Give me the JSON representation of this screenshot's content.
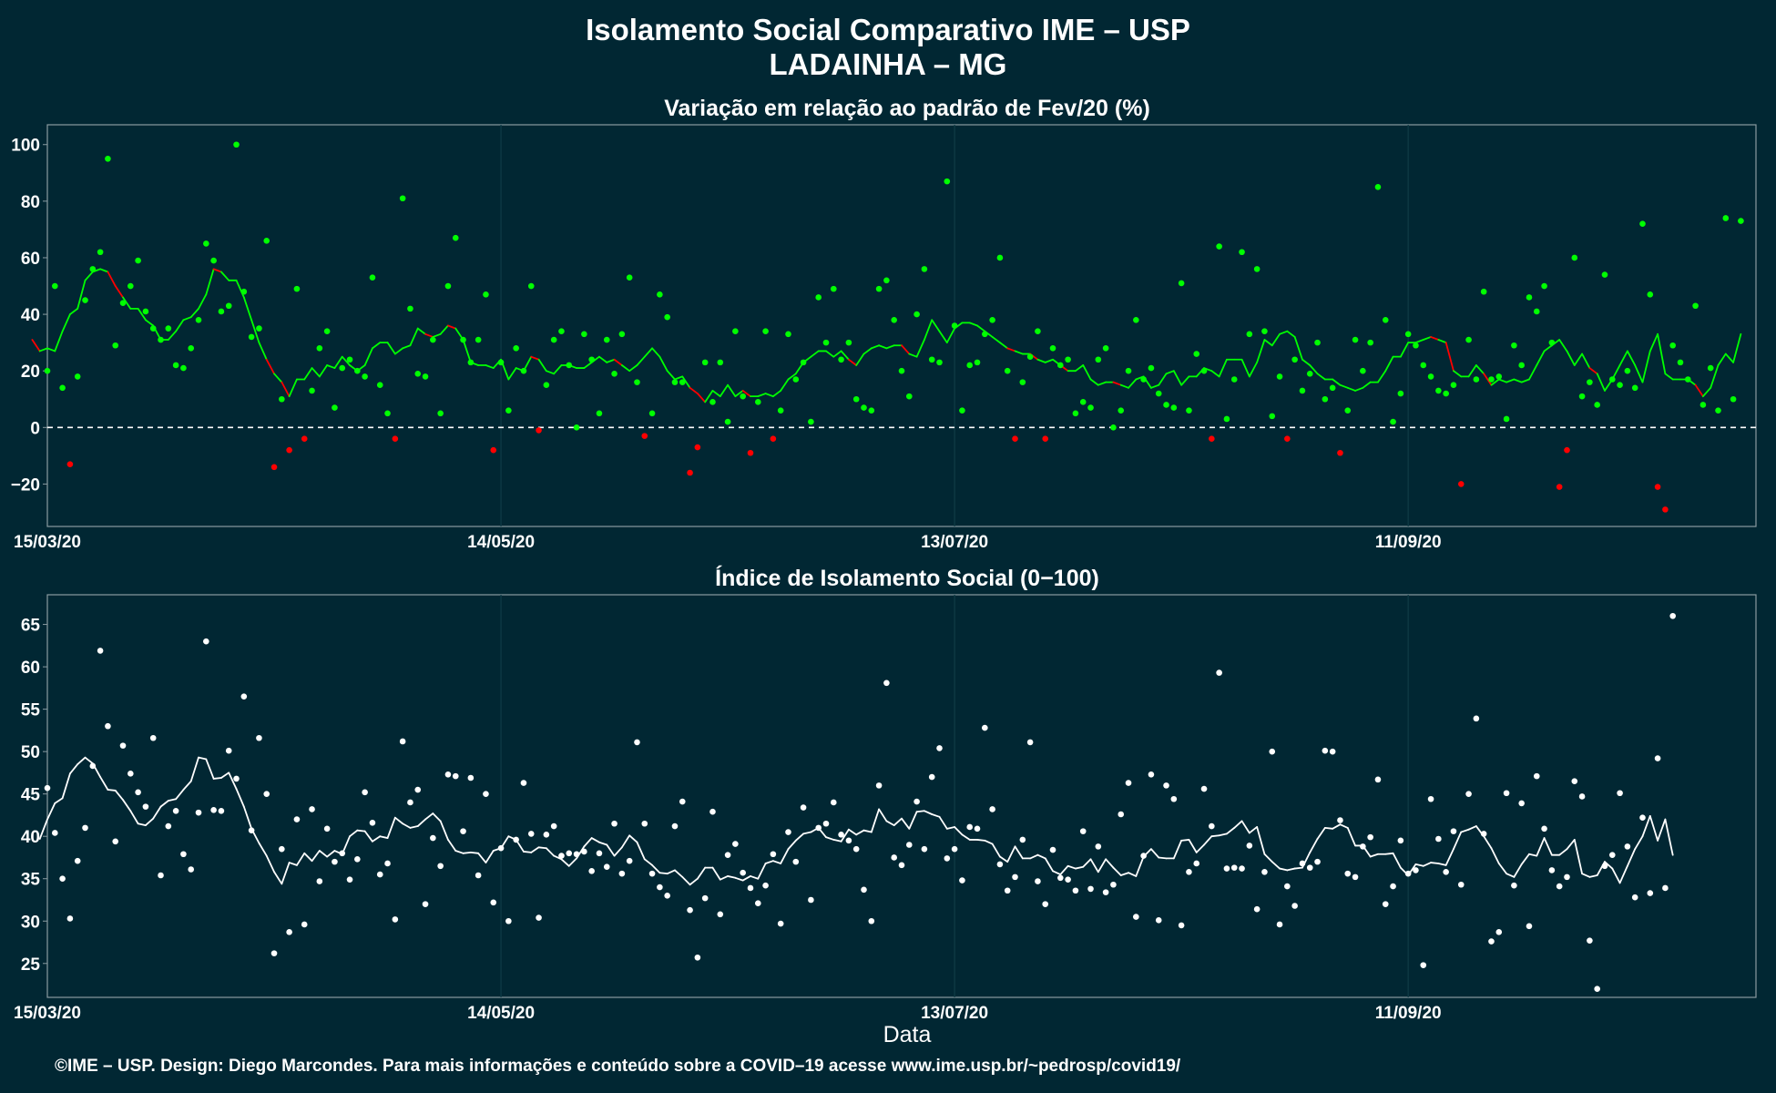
{
  "title_line1": "Isolamento Social Comparativo IME – USP",
  "title_line2": "LADAINHA – MG",
  "xlabel": "Data",
  "footer": "©IME – USP. Design: Diego Marcondes. Para mais informações e conteúdo sobre a COVID–19 acesse www.ime.usp.br/~pedrosp/covid19/",
  "colors": {
    "background": "#012733",
    "positive": "#00ff00",
    "negative": "#ff0000",
    "index": "#ffffff",
    "panel_border": "#8a9ba1",
    "grid": "#0f3a45"
  },
  "chart_data": [
    {
      "type": "scatter",
      "title": "Variação em relação ao padrão de Fev/20 (%)",
      "x_start": "2020-03-15",
      "x_end": "2020-10-27",
      "x_ticks": [
        "15/03/20",
        "14/05/20",
        "13/07/20",
        "11/09/20"
      ],
      "ylim": [
        -35,
        107
      ],
      "y_ticks": [
        "100",
        "80",
        "60",
        "40",
        "20",
        "0",
        "−20"
      ],
      "y_tick_values": [
        100,
        80,
        60,
        40,
        20,
        0,
        -20
      ],
      "reference_line": 0,
      "values": [
        20,
        50,
        14,
        -13,
        18,
        45,
        56,
        62,
        95,
        29,
        44,
        50,
        59,
        41,
        35,
        31,
        35,
        22,
        21,
        28,
        38,
        65,
        59,
        41,
        43,
        100,
        48,
        32,
        35,
        66,
        -14,
        10,
        -8,
        49,
        -4,
        13,
        28,
        34,
        7,
        21,
        24,
        20,
        18,
        53,
        15,
        5,
        -4,
        81,
        42,
        19,
        18,
        31,
        5,
        50,
        67,
        31,
        23,
        31,
        47,
        -8,
        23,
        6,
        28,
        20,
        50,
        -1,
        15,
        31,
        34,
        22,
        0,
        33,
        24,
        5,
        31,
        19,
        33,
        53,
        16,
        -3,
        5,
        47,
        39,
        16,
        16,
        -16,
        -7,
        23,
        9,
        23,
        2,
        34,
        11,
        -9,
        9,
        34,
        -4,
        6,
        33,
        17,
        23,
        2,
        46,
        30,
        49,
        24,
        30,
        10,
        7,
        6,
        49,
        52,
        38,
        20,
        11,
        40,
        56,
        24,
        23,
        87,
        36,
        6,
        22,
        23,
        33,
        38,
        60,
        20,
        -4,
        16,
        25,
        34,
        -4,
        28,
        22,
        24,
        5,
        9,
        7,
        24,
        28,
        0,
        6,
        20,
        38,
        17,
        21,
        12,
        8,
        7,
        51,
        6,
        26,
        20,
        -4,
        64,
        3,
        17,
        62,
        33,
        56,
        34,
        4,
        18,
        -4,
        24,
        13,
        19,
        30,
        10,
        14,
        -9,
        6,
        31,
        20,
        30,
        85,
        38,
        2,
        12,
        33,
        29,
        22,
        18,
        13,
        12,
        15,
        -20,
        31,
        17,
        48,
        17,
        18,
        3,
        29,
        22,
        46,
        41,
        50,
        30,
        -21,
        -8,
        60,
        11,
        16,
        8,
        54,
        17,
        15,
        20,
        14,
        72,
        47,
        -21,
        -29,
        29,
        23,
        17,
        43,
        8,
        21,
        6,
        74,
        10,
        73
      ],
      "moving_average": [
        31,
        27,
        28,
        27,
        34,
        40,
        42,
        52,
        55,
        56,
        55,
        50,
        46,
        42,
        42,
        38,
        36,
        31,
        31,
        34,
        38,
        39,
        42,
        47,
        56,
        55,
        52,
        52,
        46,
        38,
        30,
        24,
        19,
        16,
        11,
        17,
        17,
        21,
        18,
        22,
        21,
        25,
        22,
        20,
        22,
        28,
        30,
        30,
        26,
        28,
        29,
        35,
        33,
        32,
        33,
        36,
        35,
        31,
        23,
        22,
        22,
        21,
        24,
        17,
        21,
        20,
        25,
        24,
        20,
        19,
        22,
        22,
        21,
        21,
        23,
        25,
        23,
        24,
        22,
        20,
        22,
        25,
        28,
        25,
        20,
        17,
        18,
        14,
        12,
        9,
        13,
        11,
        15,
        11,
        13,
        11,
        11,
        12,
        11,
        13,
        17,
        19,
        23,
        25,
        27,
        27,
        25,
        27,
        24,
        22,
        26,
        28,
        29,
        28,
        29,
        29,
        26,
        25,
        31,
        38,
        34,
        30,
        35,
        37,
        37,
        36,
        34,
        32,
        30,
        28,
        27,
        26,
        26,
        24,
        23,
        24,
        22,
        20,
        20,
        22,
        17,
        15,
        16,
        16,
        15,
        14,
        17,
        18,
        14,
        15,
        19,
        20,
        15,
        18,
        18,
        21,
        20,
        18,
        24,
        24,
        24,
        18,
        23,
        31,
        29,
        33,
        34,
        32,
        24,
        22,
        19,
        17,
        17,
        15,
        14,
        13,
        14,
        16,
        16,
        20,
        25,
        25,
        30,
        30,
        31,
        32,
        31,
        30,
        20,
        18,
        18,
        22,
        19,
        15,
        17,
        16,
        17,
        16,
        17,
        22,
        27,
        29,
        31,
        27,
        22,
        26,
        21,
        19,
        13,
        17,
        22,
        27,
        22,
        16,
        27,
        33,
        19,
        17,
        17,
        17,
        15,
        11,
        14,
        22,
        26,
        23,
        33
      ]
    },
    {
      "type": "scatter",
      "title": "Índice de Isolamento Social (0−100)",
      "x_start": "2020-03-15",
      "x_end": "2020-10-27",
      "x_ticks": [
        "15/03/20",
        "14/05/20",
        "13/07/20",
        "11/09/20"
      ],
      "ylim": [
        21,
        68.5
      ],
      "y_ticks": [
        "65",
        "60",
        "55",
        "50",
        "45",
        "40",
        "35",
        "30",
        "25"
      ],
      "y_tick_values": [
        65,
        60,
        55,
        50,
        45,
        40,
        35,
        30,
        25
      ],
      "values": [
        45.7,
        40.4,
        35.0,
        30.3,
        37.1,
        41.0,
        48.3,
        61.9,
        53.0,
        39.4,
        50.7,
        47.4,
        45.2,
        43.5,
        51.6,
        35.4,
        41.2,
        43.0,
        37.9,
        36.1,
        42.8,
        63.0,
        43.1,
        43.0,
        50.1,
        46.8,
        56.5,
        40.7,
        51.6,
        45.0,
        26.2,
        38.5,
        28.7,
        42.0,
        29.6,
        43.2,
        34.7,
        40.9,
        37.0,
        38.0,
        34.9,
        37.3,
        45.2,
        41.6,
        35.5,
        36.8,
        30.2,
        51.2,
        44.0,
        45.5,
        32.0,
        39.8,
        36.5,
        47.3,
        47.1,
        40.6,
        46.9,
        35.4,
        45.0,
        32.2,
        38.6,
        30.0,
        39.6,
        46.3,
        40.3,
        30.4,
        40.2,
        41.2,
        37.7,
        38.0,
        37.9,
        38.2,
        35.9,
        38.0,
        36.4,
        41.5,
        35.6,
        37.1,
        51.1,
        41.5,
        35.6,
        34.0,
        33.0,
        41.2,
        44.1,
        31.3,
        25.7,
        32.7,
        42.9,
        30.8,
        37.8,
        39.1,
        35.7,
        33.9,
        32.1,
        34.2,
        37.9,
        29.7,
        40.5,
        37.0,
        43.4,
        32.5,
        41.0,
        41.5,
        44.0,
        40.2,
        39.5,
        38.5,
        33.7,
        30.0,
        46.0,
        58.1,
        37.5,
        36.6,
        39.0,
        44.1,
        38.5,
        47.0,
        50.4,
        37.4,
        38.5,
        34.8,
        41.1,
        40.9,
        52.8,
        43.2,
        36.7,
        33.6,
        35.2,
        39.6,
        51.1,
        34.7,
        32.0,
        38.4,
        35.1,
        34.9,
        33.6,
        40.6,
        33.8,
        38.8,
        33.4,
        34.3,
        42.6,
        46.3,
        30.5,
        37.7,
        47.3,
        30.1,
        46.0,
        44.4,
        29.5,
        35.8,
        36.8,
        45.6,
        41.2,
        59.3,
        36.2,
        36.3,
        36.2,
        38.9,
        31.4,
        35.8,
        50.0,
        29.6,
        34.1,
        31.8,
        36.8,
        36.3,
        37.0,
        50.1,
        50.0,
        41.9,
        35.6,
        35.2,
        38.8,
        39.9,
        46.7,
        32.0,
        34.1,
        39.5,
        35.6,
        36.0,
        24.8,
        44.4,
        39.7,
        35.8,
        40.6,
        34.3,
        45.0,
        53.9,
        40.3,
        27.6,
        28.7,
        45.1,
        34.2,
        43.9,
        29.4,
        47.1,
        40.9,
        36.0,
        34.1,
        35.2,
        46.5,
        44.7,
        27.7,
        22.0,
        36.5,
        37.8,
        45.1,
        38.8,
        32.8,
        42.2,
        33.3,
        49.2,
        33.9,
        66.0
      ],
      "moving_average": [
        39.7,
        42.0,
        43.9,
        44.5,
        47.4,
        48.5,
        49.3,
        48.6,
        47.0,
        45.5,
        45.4,
        44.3,
        43.0,
        41.5,
        41.3,
        42.1,
        43.5,
        44.2,
        44.4,
        45.5,
        46.5,
        49.3,
        49.1,
        46.8,
        46.9,
        47.5,
        45.6,
        43.5,
        40.9,
        39.2,
        37.7,
        35.8,
        34.4,
        36.9,
        36.6,
        38.0,
        37.1,
        38.3,
        37.6,
        38.3,
        37.9,
        40.0,
        40.7,
        40.6,
        39.4,
        40.0,
        39.8,
        42.2,
        41.5,
        41.0,
        41.2,
        42.0,
        42.7,
        41.8,
        39.6,
        38.3,
        38.0,
        38.1,
        38.0,
        36.9,
        38.3,
        38.6,
        40.0,
        39.6,
        38.2,
        38.1,
        38.7,
        38.6,
        37.7,
        37.3,
        36.5,
        37.4,
        38.8,
        39.8,
        39.3,
        39.0,
        37.7,
        38.7,
        40.1,
        39.3,
        37.3,
        36.6,
        35.7,
        35.6,
        36.0,
        35.2,
        34.3,
        35.0,
        36.3,
        36.3,
        34.9,
        35.3,
        35.1,
        34.8,
        35.3,
        35.0,
        36.8,
        37.1,
        36.8,
        38.5,
        39.5,
        40.3,
        40.5,
        41.0,
        39.9,
        39.6,
        39.4,
        40.8,
        40.2,
        40.7,
        40.5,
        43.2,
        41.8,
        41.3,
        42.1,
        40.9,
        42.9,
        43.0,
        42.6,
        42.3,
        40.9,
        41.1,
        40.2,
        39.6,
        39.6,
        39.5,
        39.1,
        37.6,
        37.0,
        38.8,
        37.4,
        37.4,
        37.8,
        37.4,
        35.9,
        35.5,
        36.5,
        36.2,
        36.4,
        37.3,
        35.8,
        37.3,
        36.3,
        35.4,
        35.7,
        35.3,
        37.6,
        38.5,
        37.5,
        37.4,
        37.4,
        39.5,
        39.6,
        38.1,
        39.0,
        40.0,
        40.1,
        40.3,
        41.0,
        41.8,
        40.4,
        41.1,
        37.9,
        37.0,
        36.2,
        36.0,
        36.2,
        36.3,
        38.1,
        39.7,
        41.0,
        40.9,
        41.4,
        41.0,
        38.9,
        38.9,
        37.6,
        37.9,
        37.9,
        38.0,
        36.3,
        35.4,
        36.7,
        36.5,
        36.9,
        36.8,
        36.6,
        38.5,
        40.5,
        40.8,
        41.2,
        40.0,
        38.6,
        36.8,
        35.6,
        35.2,
        36.7,
        37.9,
        37.7,
        39.8,
        37.8,
        37.8,
        38.5,
        39.6,
        35.6,
        35.2,
        35.4,
        37.0,
        36.2,
        34.5,
        36.5,
        38.5,
        40.0,
        42.4,
        39.5,
        42.0,
        37.8
      ]
    }
  ]
}
